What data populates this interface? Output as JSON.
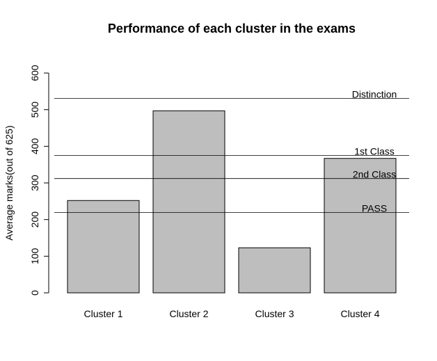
{
  "chart_data": {
    "type": "bar",
    "title": "Performance of each cluster in the exams",
    "xlabel": "",
    "ylabel": "Average marks(out of 625)",
    "categories": [
      "Cluster 1",
      "Cluster 2",
      "Cluster 3",
      "Cluster 4"
    ],
    "values": [
      252,
      497,
      123,
      367
    ],
    "ylim": [
      0,
      600
    ],
    "yticks": [
      0,
      100,
      200,
      300,
      400,
      500,
      600
    ],
    "grid": false,
    "bar_color": "#bebebe",
    "reference_lines": [
      {
        "label": "Distinction",
        "value": 531
      },
      {
        "label": "1st Class",
        "value": 375
      },
      {
        "label": "2nd Class",
        "value": 312
      },
      {
        "label": "PASS",
        "value": 219
      }
    ]
  }
}
